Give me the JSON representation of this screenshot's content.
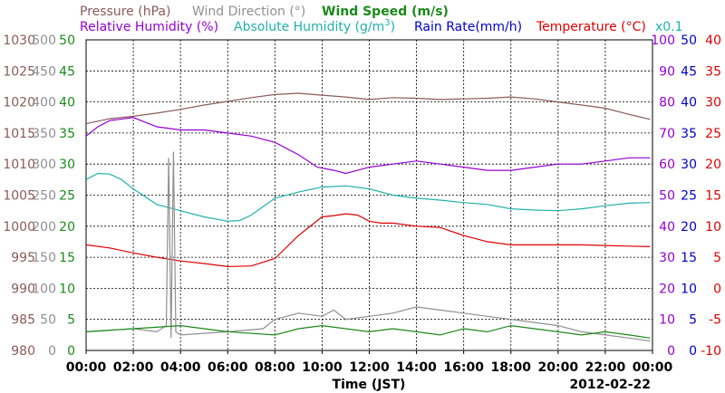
{
  "chart_data": {
    "type": "line",
    "title": "",
    "xlabel": "Time (JST)",
    "date_label": "2012-02-22",
    "x_ticks": [
      "00:00",
      "02:00",
      "04:00",
      "06:00",
      "08:00",
      "10:00",
      "12:00",
      "14:00",
      "16:00",
      "18:00",
      "20:00",
      "22:00",
      "00:00"
    ],
    "grid": true,
    "header": {
      "pressure": "Pressure (hPa)",
      "wind_dir": "Wind Direction (°)",
      "wind_speed": "Wind Speed (m/s)",
      "rel_humidity": "Relative Humidity (%)",
      "abs_humidity_pre": "Absolute Humidity (g/m",
      "abs_humidity_sup": "3",
      "abs_humidity_post": ")",
      "rain_rate": "Rain Rate(mm/h)",
      "temperature": "Temperature (°C)",
      "x01": "x0.1"
    },
    "axes": {
      "pressure": {
        "color": "#8b5a5a",
        "min": 980,
        "max": 1030,
        "ticks": [
          "1030",
          "1025",
          "1020",
          "1015",
          "1010",
          "1005",
          "1000",
          "995",
          "990",
          "985",
          "980"
        ]
      },
      "wind_dir": {
        "color": "#909090",
        "min": 0,
        "max": 500,
        "ticks": [
          "500",
          "450",
          "400",
          "350",
          "300",
          "250",
          "200",
          "150",
          "100",
          "50",
          "0"
        ]
      },
      "wind_speed": {
        "color": "#1a8a1a",
        "min": 0,
        "max": 50,
        "ticks": [
          "50",
          "45",
          "40",
          "35",
          "30",
          "25",
          "20",
          "15",
          "10",
          "5",
          "0"
        ]
      },
      "rel_humidity": {
        "color": "#9400d3",
        "min": 0,
        "max": 100,
        "ticks": [
          "100",
          "90",
          "80",
          "70",
          "60",
          "50",
          "40",
          "30",
          "20",
          "10",
          "0"
        ]
      },
      "rain_rate": {
        "color": "#0000cc",
        "min": 0,
        "max": 50,
        "ticks": [
          "50",
          "45",
          "40",
          "35",
          "30",
          "25",
          "20",
          "15",
          "10",
          "5",
          "0"
        ]
      },
      "temperature": {
        "color": "#e00000",
        "min": -10,
        "max": 40,
        "ticks": [
          "40",
          "35",
          "30",
          "25",
          "20",
          "15",
          "10",
          "5",
          "0",
          "-5",
          "-10"
        ]
      }
    },
    "series": [
      {
        "name": "Pressure (hPa)",
        "axis": "pressure",
        "color": "#8b5a5a",
        "x": [
          0,
          1,
          2,
          3,
          4,
          5,
          6,
          7,
          8,
          9,
          10,
          11,
          12,
          13,
          14,
          15,
          16,
          17,
          18,
          19,
          20,
          21,
          22,
          23,
          23.9
        ],
        "y": [
          1016.5,
          1017.3,
          1017.7,
          1018.2,
          1018.8,
          1019.5,
          1020.1,
          1020.7,
          1021.2,
          1021.4,
          1021.1,
          1020.8,
          1020.4,
          1020.7,
          1020.6,
          1020.4,
          1020.5,
          1020.6,
          1020.8,
          1020.5,
          1020.0,
          1019.5,
          1019.0,
          1018.0,
          1017.2
        ]
      },
      {
        "name": "Relative Humidity (%)",
        "axis": "rel_humidity",
        "color": "#9400d3",
        "x": [
          0,
          0.5,
          1,
          2,
          3,
          4,
          5,
          6,
          7,
          8,
          9,
          9.8,
          10.5,
          11,
          11.5,
          12,
          13,
          14,
          15,
          16,
          17,
          18,
          19,
          20,
          21,
          22,
          23,
          23.9
        ],
        "y": [
          69,
          72,
          74,
          75,
          72,
          71,
          71,
          70,
          69,
          67,
          63,
          59,
          58,
          57,
          58,
          59,
          60,
          61,
          60,
          59,
          58,
          58,
          59,
          60,
          60,
          61,
          62,
          62
        ]
      },
      {
        "name": "Absolute Humidity (g/m3)",
        "axis": "wind_speed",
        "color": "#20b2aa",
        "x": [
          0,
          0.5,
          1,
          1.5,
          2,
          3,
          4,
          5,
          6,
          6.5,
          7,
          8,
          9,
          10,
          11,
          12,
          13,
          14,
          15,
          16,
          17,
          18,
          19,
          20,
          21,
          22,
          23,
          23.9
        ],
        "y": [
          27.5,
          28.5,
          28.4,
          27.5,
          26,
          23.5,
          22.5,
          21.5,
          20.8,
          20.9,
          21.8,
          24.5,
          25.5,
          26.3,
          26.5,
          26,
          25,
          24.5,
          24.2,
          23.8,
          23.5,
          22.8,
          22.6,
          22.5,
          22.8,
          23.3,
          23.7,
          23.8
        ]
      },
      {
        "name": "Temperature (°C)",
        "axis": "temperature",
        "color": "#e00000",
        "x": [
          0,
          1,
          2,
          3,
          4,
          5,
          6,
          7,
          8,
          9,
          10,
          10.5,
          11,
          11.5,
          12,
          12.5,
          13,
          14,
          15,
          16,
          17,
          18,
          19,
          20,
          21,
          22,
          23,
          23.9
        ],
        "y": [
          7.0,
          6.5,
          5.7,
          5.0,
          4.4,
          4.0,
          3.5,
          3.6,
          4.8,
          8.5,
          11.5,
          11.7,
          12.0,
          11.8,
          10.8,
          10.5,
          10.5,
          10.0,
          9.8,
          8.5,
          7.5,
          7.0,
          7.0,
          7.0,
          7.0,
          6.9,
          6.8,
          6.7
        ]
      },
      {
        "name": "Wind Direction (°)",
        "axis": "wind_dir",
        "color": "#909090",
        "x": [
          0,
          2,
          3,
          3.4,
          3.5,
          3.6,
          3.7,
          3.8,
          4,
          6,
          7.5,
          8,
          9,
          10,
          10.5,
          11,
          12,
          13,
          14,
          15,
          16,
          17,
          18,
          19,
          20,
          21,
          22,
          23,
          23.9
        ],
        "y": [
          30,
          35,
          30,
          40,
          310,
          20,
          320,
          30,
          25,
          30,
          35,
          50,
          60,
          55,
          65,
          50,
          55,
          60,
          70,
          65,
          60,
          55,
          50,
          45,
          40,
          30,
          25,
          20,
          15
        ]
      },
      {
        "name": "Wind Speed (m/s)",
        "axis": "wind_speed",
        "color": "#1a8a1a",
        "x": [
          0,
          2,
          4,
          6,
          8,
          9,
          10,
          11,
          12,
          13,
          14,
          15,
          16,
          17,
          18,
          19,
          20,
          21,
          22,
          23,
          23.9
        ],
        "y": [
          3,
          3.5,
          4,
          3,
          2.5,
          3.5,
          4,
          3.5,
          3,
          3.5,
          3,
          2.5,
          3.5,
          3,
          4,
          3.5,
          3,
          2.5,
          3,
          2.5,
          2
        ]
      }
    ]
  }
}
